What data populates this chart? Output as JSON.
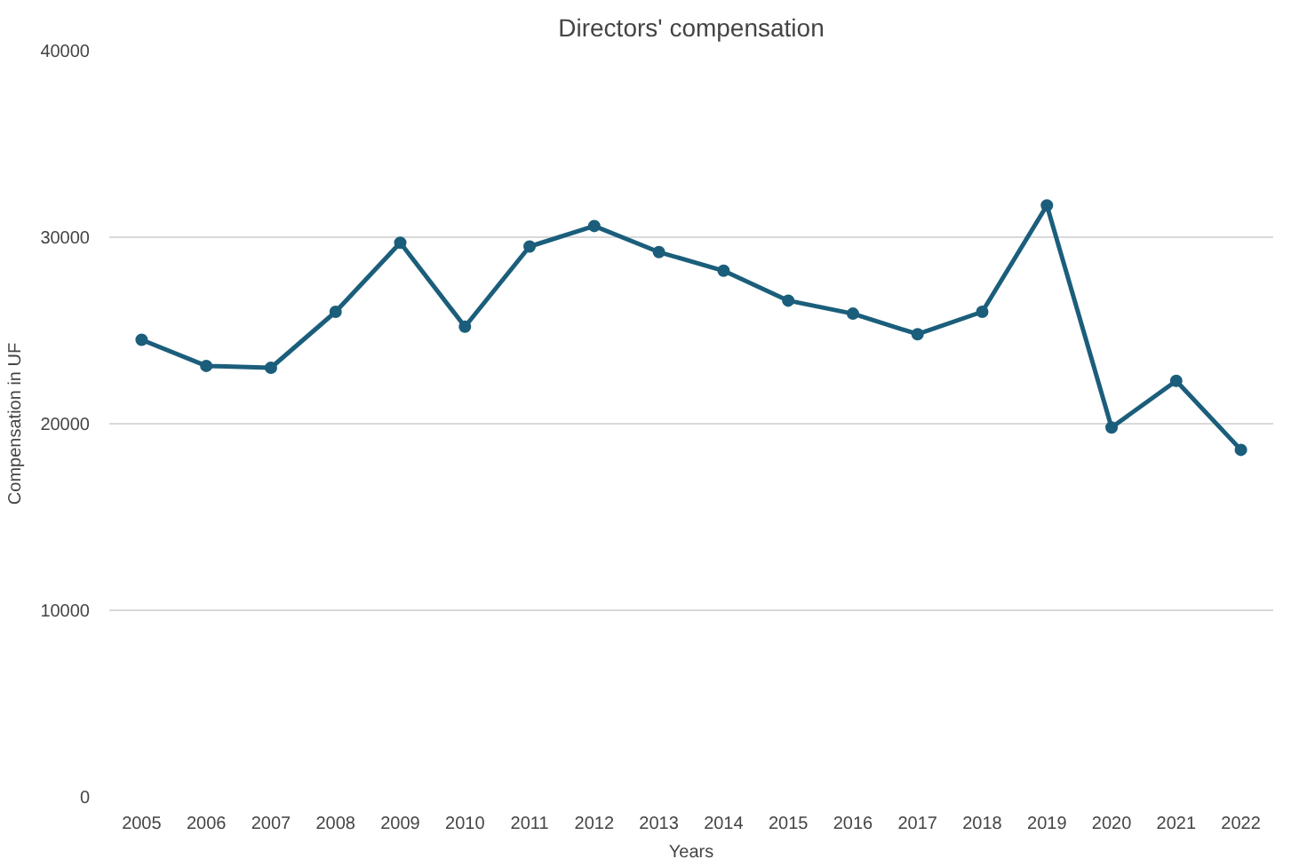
{
  "chart_data": {
    "type": "line",
    "title": "Directors' compensation",
    "xlabel": "Years",
    "ylabel": "Compensation in UF",
    "categories": [
      "2005",
      "2006",
      "2007",
      "2008",
      "2009",
      "2010",
      "2011",
      "2012",
      "2013",
      "2014",
      "2015",
      "2016",
      "2017",
      "2018",
      "2019",
      "2020",
      "2021",
      "2022"
    ],
    "series": [
      {
        "color": "#1b5e7b",
        "values": [
          24500,
          23100,
          23000,
          26000,
          29700,
          25200,
          29500,
          30600,
          29200,
          28200,
          26600,
          25900,
          24800,
          26000,
          31700,
          19800,
          22300,
          18600
        ]
      }
    ],
    "ylim": [
      0,
      40000
    ],
    "yticks": [
      0,
      10000,
      20000,
      30000,
      40000
    ],
    "grid": "y",
    "marker": "circle",
    "line_style": "solid"
  }
}
